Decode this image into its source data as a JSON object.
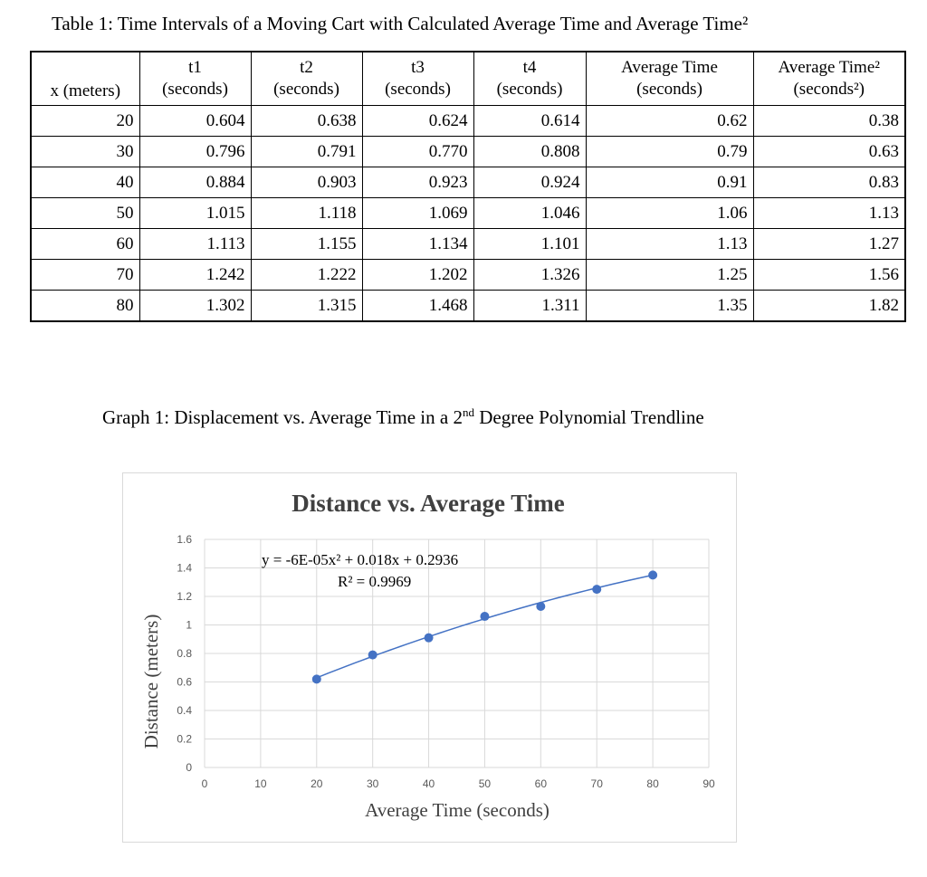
{
  "table": {
    "caption": "Table 1: Time Intervals of a Moving Cart with Calculated Average Time and Average Time²",
    "headers": [
      {
        "line1": "",
        "line2": "x (meters)"
      },
      {
        "line1": "t1",
        "line2": "(seconds)"
      },
      {
        "line1": "t2",
        "line2": "(seconds)"
      },
      {
        "line1": "t3",
        "line2": "(seconds)"
      },
      {
        "line1": "t4",
        "line2": "(seconds)"
      },
      {
        "line1": "Average Time",
        "line2": "(seconds)"
      },
      {
        "line1": "Average Time²",
        "line2": "(seconds²)"
      }
    ],
    "rows": [
      [
        "20",
        "0.604",
        "0.638",
        "0.624",
        "0.614",
        "0.62",
        "0.38"
      ],
      [
        "30",
        "0.796",
        "0.791",
        "0.770",
        "0.808",
        "0.79",
        "0.63"
      ],
      [
        "40",
        "0.884",
        "0.903",
        "0.923",
        "0.924",
        "0.91",
        "0.83"
      ],
      [
        "50",
        "1.015",
        "1.118",
        "1.069",
        "1.046",
        "1.06",
        "1.13"
      ],
      [
        "60",
        "1.113",
        "1.155",
        "1.134",
        "1.101",
        "1.13",
        "1.27"
      ],
      [
        "70",
        "1.242",
        "1.222",
        "1.202",
        "1.326",
        "1.25",
        "1.56"
      ],
      [
        "80",
        "1.302",
        "1.315",
        "1.468",
        "1.311",
        "1.35",
        "1.82"
      ]
    ]
  },
  "graph": {
    "caption_pre": "Graph 1: Displacement vs. Average Time in a 2",
    "caption_sup": "nd",
    "caption_post": " Degree Polynomial Trendline"
  },
  "chart_data": {
    "type": "scatter",
    "title": "Distance vs. Average Time",
    "xlabel": "Average Time (seconds)",
    "ylabel": "Distance (meters)",
    "xlim": [
      0,
      90
    ],
    "ylim": [
      0,
      1.6
    ],
    "xticks": [
      "0",
      "10",
      "20",
      "30",
      "40",
      "50",
      "60",
      "70",
      "80",
      "90"
    ],
    "yticks": [
      "0",
      "0.2",
      "0.4",
      "0.6",
      "0.8",
      "1",
      "1.2",
      "1.4",
      "1.6"
    ],
    "grid": true,
    "points": {
      "x": [
        20,
        30,
        40,
        50,
        60,
        70,
        80
      ],
      "y": [
        0.62,
        0.79,
        0.91,
        1.06,
        1.13,
        1.25,
        1.35
      ]
    },
    "trendline": {
      "type": "polynomial-2",
      "coefficients": [
        -6e-05,
        0.018,
        0.2936
      ],
      "x_range": [
        20,
        80
      ],
      "equation": "y = -6E-05x² + 0.018x + 0.2936",
      "r2": "R² = 0.9969"
    },
    "colors": {
      "points": "#4472c4",
      "trendline": "#4472c4",
      "grid": "#d9d9d9",
      "tick_text": "#595959",
      "title": "#404040"
    }
  }
}
